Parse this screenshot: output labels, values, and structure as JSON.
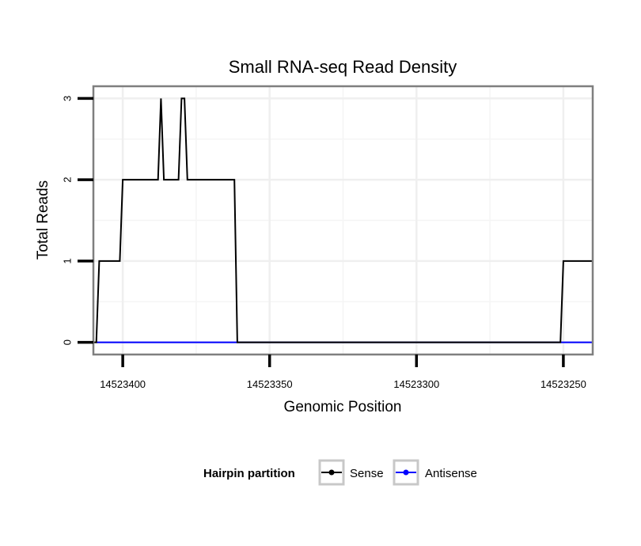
{
  "chart_data": {
    "type": "line",
    "title": "Small RNA-seq Read Density",
    "xlabel": "Genomic Position",
    "ylabel": "Total Reads",
    "x_reversed": true,
    "xlim": [
      14523410,
      14523240
    ],
    "ylim": [
      -0.15,
      3.15
    ],
    "x_ticks": [
      14523400,
      14523350,
      14523300,
      14523250
    ],
    "x_tick_labels": [
      "14523400",
      "14523350",
      "14523300",
      "14523250"
    ],
    "y_ticks": [
      0,
      1,
      2,
      3
    ],
    "y_tick_labels": [
      "0",
      "1",
      "2",
      "3"
    ],
    "grid": true,
    "legend": {
      "title": "Hairpin partition",
      "position": "bottom",
      "entries": [
        "Sense",
        "Antisense"
      ]
    },
    "series": [
      {
        "name": "Sense",
        "color": "#000000",
        "points": [
          [
            14523411,
            0
          ],
          [
            14523409,
            0
          ],
          [
            14523408,
            1
          ],
          [
            14523401,
            1
          ],
          [
            14523400,
            2
          ],
          [
            14523388,
            2
          ],
          [
            14523387,
            3
          ],
          [
            14523386,
            2
          ],
          [
            14523381,
            2
          ],
          [
            14523380,
            3
          ],
          [
            14523379,
            3
          ],
          [
            14523378,
            2
          ],
          [
            14523362,
            2
          ],
          [
            14523361,
            0
          ],
          [
            14523251,
            0
          ],
          [
            14523250,
            1
          ],
          [
            14523240,
            1
          ]
        ]
      },
      {
        "name": "Antisense",
        "color": "#0000ff",
        "points": [
          [
            14523409,
            0
          ],
          [
            14523240,
            0
          ]
        ]
      }
    ]
  }
}
